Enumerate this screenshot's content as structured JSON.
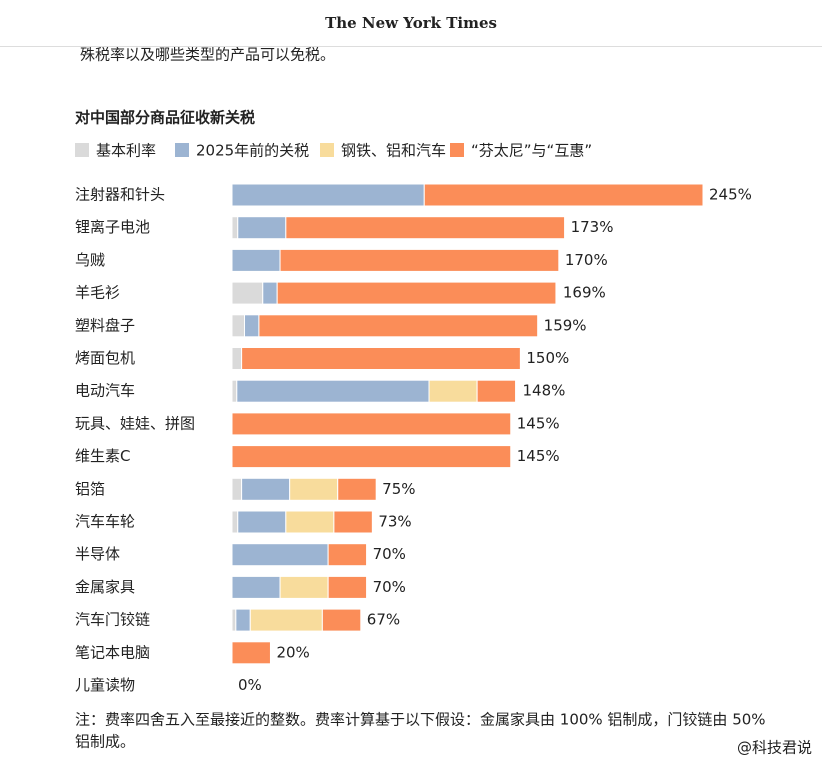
{
  "header": {
    "logo": "The New York Times",
    "intro": "殊税率以及哪些类型的产品可以免税。"
  },
  "chart_data": {
    "type": "stacked-bar-horizontal",
    "title": "对中国部分商品征收新关税",
    "categories": [
      "注射器和针头",
      "锂离子电池",
      "乌贼",
      "羊毛衫",
      "塑料盘子",
      "烤面包机",
      "电动汽车",
      "玩具、娃娃、拼图",
      "维生素C",
      "铝箔",
      "汽车车轮",
      "半导体",
      "金属家具",
      "汽车门铰链",
      "笔记本电脑",
      "儿童读物"
    ],
    "series": [
      {
        "name": "基本利率",
        "color": "#dadada",
        "values": [
          0,
          3,
          0,
          16,
          6.5,
          5,
          2.5,
          0,
          0,
          5,
          3,
          0,
          0,
          2,
          0,
          0
        ]
      },
      {
        "name": "2025年前的关税",
        "color": "#9cb4d2",
        "values": [
          100,
          25,
          25,
          7.5,
          7.5,
          0,
          100,
          0,
          0,
          25,
          25,
          50,
          25,
          7.5,
          0,
          0
        ]
      },
      {
        "name": "钢铁、铝和汽车",
        "color": "#f8dc9c",
        "values": [
          0,
          0,
          0,
          0,
          0,
          0,
          25,
          0,
          0,
          25,
          25,
          0,
          25,
          37.5,
          0,
          0
        ]
      },
      {
        "name": "“芬太尼”与“互惠”",
        "color": "#fb8d58",
        "values": [
          145,
          145,
          145,
          145,
          145,
          145,
          20,
          145,
          145,
          20,
          20,
          20,
          20,
          20,
          20,
          0
        ]
      }
    ],
    "totals": [
      245,
      173,
      170,
      169,
      159,
      150,
      148,
      145,
      145,
      75,
      73,
      70,
      70,
      67,
      20,
      0
    ],
    "total_labels": [
      "245%",
      "173%",
      "170%",
      "169%",
      "159%",
      "150%",
      "148%",
      "145%",
      "145%",
      "75%",
      "73%",
      "70%",
      "70%",
      "67%",
      "20%",
      "0%"
    ],
    "xlim": [
      0,
      245
    ],
    "note": [
      "注：费率四舍五入至最接近的整数。费率计算基于以下假设：金属家具由 100% 铝制成，门铰链由 50%",
      "铝制成。"
    ]
  },
  "watermark": "@科技君说"
}
